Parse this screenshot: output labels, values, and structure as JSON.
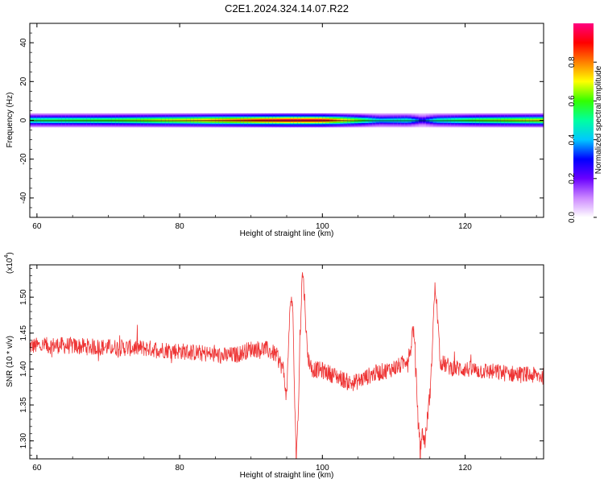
{
  "title": "C2E1.2024.324.14.07.R22",
  "chart_data": [
    {
      "type": "heatmap",
      "xlabel": "Height of straight line (km)",
      "ylabel": "Frequency (Hz)",
      "xlim": [
        59,
        131
      ],
      "ylim": [
        -50,
        50
      ],
      "xticks": [
        "60",
        "80",
        "100",
        "120"
      ],
      "yticks": [
        "-40",
        "-20",
        "0",
        "20",
        "40"
      ],
      "colorbar": {
        "label": "Normalized spectral amplitude",
        "range": [
          0,
          1
        ],
        "ticks": [
          "0.0",
          "0.2",
          "0.4",
          "0.6",
          "0.8"
        ],
        "colors": [
          "#ffffff",
          "#cc88ff",
          "#6a00ff",
          "#0000ff",
          "#00c8ff",
          "#00ffa0",
          "#33ff00",
          "#ffff00",
          "#ff7f00",
          "#ff0000",
          "#ff0080"
        ]
      },
      "ridge": {
        "center_freq_hz": 0,
        "profile": [
          {
            "x": 59,
            "amp": 0.55
          },
          {
            "x": 70,
            "amp": 0.6
          },
          {
            "x": 80,
            "amp": 0.72
          },
          {
            "x": 88,
            "amp": 0.85
          },
          {
            "x": 95,
            "amp": 0.97
          },
          {
            "x": 100,
            "amp": 0.95
          },
          {
            "x": 104,
            "amp": 0.7
          },
          {
            "x": 108,
            "amp": 0.45
          },
          {
            "x": 112,
            "amp": 0.5
          },
          {
            "x": 114,
            "amp": 0.3
          },
          {
            "x": 116,
            "amp": 0.5
          },
          {
            "x": 122,
            "amp": 0.62
          },
          {
            "x": 131,
            "amp": 0.72
          }
        ]
      }
    },
    {
      "type": "line",
      "xlabel": "Height of straight line (km)",
      "ylabel": "SNR (10 * v/v)",
      "y_multiplier_label": "(x10",
      "y_multiplier_exp": "4",
      "xlim": [
        59,
        131
      ],
      "ylim": [
        1.275,
        1.545
      ],
      "xticks": [
        "60",
        "80",
        "100",
        "120"
      ],
      "yticks": [
        "1.30",
        "1.35",
        "1.40",
        "1.45",
        "1.50"
      ],
      "series": [
        {
          "color": "#ee3333",
          "points": [
            [
              59,
              1.432
            ],
            [
              63,
              1.433
            ],
            [
              67,
              1.431
            ],
            [
              71,
              1.43
            ],
            [
              75,
              1.429
            ],
            [
              79,
              1.426
            ],
            [
              83,
              1.422
            ],
            [
              86,
              1.418
            ],
            [
              88,
              1.42
            ],
            [
              90,
              1.428
            ],
            [
              92,
              1.428
            ],
            [
              93.5,
              1.42
            ],
            [
              94.5,
              1.4
            ],
            [
              95,
              1.36
            ],
            [
              95.3,
              1.45
            ],
            [
              95.6,
              1.505
            ],
            [
              95.9,
              1.47
            ],
            [
              96.1,
              1.36
            ],
            [
              96.3,
              1.285
            ],
            [
              96.6,
              1.33
            ],
            [
              96.9,
              1.45
            ],
            [
              97.2,
              1.54
            ],
            [
              97.5,
              1.5
            ],
            [
              97.9,
              1.42
            ],
            [
              98.5,
              1.4
            ],
            [
              100,
              1.398
            ],
            [
              102,
              1.39
            ],
            [
              104,
              1.38
            ],
            [
              105,
              1.383
            ],
            [
              107,
              1.393
            ],
            [
              109,
              1.398
            ],
            [
              111,
              1.405
            ],
            [
              112.3,
              1.42
            ],
            [
              112.7,
              1.46
            ],
            [
              113,
              1.425
            ],
            [
              113.4,
              1.33
            ],
            [
              113.7,
              1.29
            ],
            [
              114,
              1.31
            ],
            [
              114.4,
              1.3
            ],
            [
              114.8,
              1.34
            ],
            [
              115.2,
              1.38
            ],
            [
              115.5,
              1.46
            ],
            [
              115.8,
              1.515
            ],
            [
              116.1,
              1.48
            ],
            [
              116.5,
              1.41
            ],
            [
              118,
              1.402
            ],
            [
              120,
              1.4
            ],
            [
              123,
              1.397
            ],
            [
              127,
              1.393
            ],
            [
              131,
              1.39
            ]
          ],
          "noise_amplitude": 0.012
        }
      ]
    }
  ]
}
